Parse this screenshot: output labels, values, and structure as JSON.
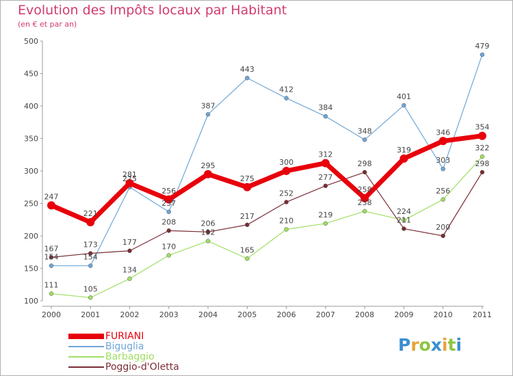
{
  "header": {
    "title": "Evolution des Impôts locaux par Habitant",
    "subtitle": "(en € et par an)"
  },
  "logo": {
    "letters": [
      "P",
      "r",
      "o",
      "x",
      "i",
      "t",
      "i"
    ],
    "colors": [
      "#3a8fd0",
      "#e8a33a",
      "#8cc63f",
      "#3a8fd0",
      "#e8a33a",
      "#8cc63f",
      "#3a8fd0"
    ]
  },
  "chart_data": {
    "type": "line",
    "title": "Evolution des Impôts locaux par Habitant",
    "subtitle": "(en € et par an)",
    "xlabel": "",
    "ylabel": "",
    "x": [
      "2000",
      "2001",
      "2002",
      "2003",
      "2004",
      "2005",
      "2006",
      "2007",
      "2008",
      "2009",
      "2010",
      "2011"
    ],
    "ylim": [
      100,
      500
    ],
    "yticks": [
      100,
      150,
      200,
      250,
      300,
      350,
      400,
      450,
      500
    ],
    "grid": false,
    "legend_position": "bottom-left",
    "series": [
      {
        "name": "FURIANI",
        "color": "#e8000b",
        "values": [
          247,
          221,
          281,
          256,
          295,
          275,
          300,
          312,
          258,
          319,
          346,
          354
        ],
        "labels": [
          "247",
          "221",
          "281",
          "256",
          "295",
          "275",
          "300",
          "312",
          "258",
          "319",
          "346",
          "354"
        ]
      },
      {
        "name": "Biguglia",
        "color": "#6fa6d6",
        "values": [
          154,
          154,
          275,
          237,
          387,
          443,
          412,
          384,
          348,
          401,
          303,
          479
        ],
        "labels": [
          "154",
          "154",
          "275",
          "237",
          "387",
          "443",
          "412",
          "384",
          "348",
          "401",
          "303",
          "479"
        ]
      },
      {
        "name": "Barbaggio",
        "color": "#9fdf62",
        "values": [
          111,
          105,
          134,
          170,
          192,
          165,
          210,
          219,
          238,
          224,
          256,
          322
        ],
        "labels": [
          "111",
          "105",
          "134",
          "170",
          "192",
          "165",
          "210",
          "219",
          "238",
          "224",
          "256",
          "322"
        ]
      },
      {
        "name": "Poggio-d'Oletta",
        "color": "#7a2c34",
        "values": [
          167,
          173,
          177,
          208,
          206,
          217,
          252,
          277,
          298,
          211,
          200,
          298
        ],
        "labels": [
          "167",
          "173",
          "177",
          "208",
          "206",
          "217",
          "252",
          "277",
          "298",
          "211",
          "200",
          "298"
        ]
      }
    ]
  }
}
